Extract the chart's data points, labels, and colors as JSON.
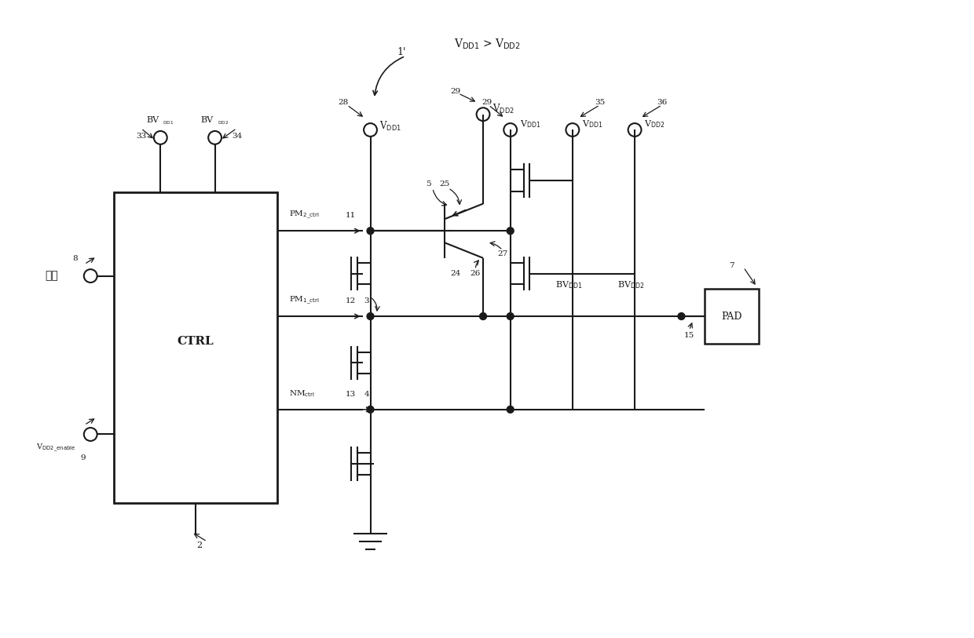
{
  "bg_color": "#ffffff",
  "lc": "#1a1a1a",
  "fig_w": 12.4,
  "fig_h": 8.13,
  "xlim": [
    0,
    124
  ],
  "ylim": [
    0,
    81.3
  ]
}
